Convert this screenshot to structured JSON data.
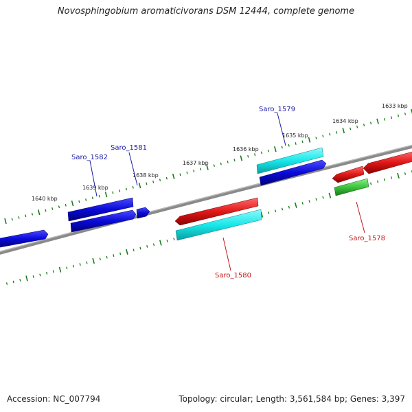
{
  "title": "Novosphingobium aromaticivorans DSM 12444, complete genome",
  "footer": {
    "accession": "Accession: NC_007794",
    "summary": "Topology: circular; Length: 3,561,584 bp; Genes: 3,397"
  },
  "colors": {
    "blue_gene": "#0a0ad8",
    "cyan_gene": "#18e8ea",
    "red_gene": "#e01818",
    "green_gene": "#3cc43c",
    "backbone": "#8a8a8a",
    "tick": "#1a7a1a",
    "label_blue": "#1a1aa8",
    "label_red": "#c01818"
  },
  "scale": {
    "ticks_kbp": [
      {
        "label": "1633 kbp"
      },
      {
        "label": "1634 kbp"
      },
      {
        "label": "1635 kbp"
      },
      {
        "label": "1636 kbp"
      },
      {
        "label": "1637 kbp"
      },
      {
        "label": "1638 kbp"
      },
      {
        "label": "1639 kbp"
      },
      {
        "label": "1640 kbp"
      }
    ]
  },
  "genes": [
    {
      "name": "Saro_1578",
      "strand": "reverse",
      "color": "red"
    },
    {
      "name": "Saro_1579",
      "strand": "forward",
      "color": "blue"
    },
    {
      "name": "Saro_1580",
      "strand": "reverse",
      "color": "red"
    },
    {
      "name": "Saro_1581",
      "strand": "forward",
      "color": "blue"
    },
    {
      "name": "Saro_1582",
      "strand": "forward",
      "color": "blue"
    }
  ]
}
